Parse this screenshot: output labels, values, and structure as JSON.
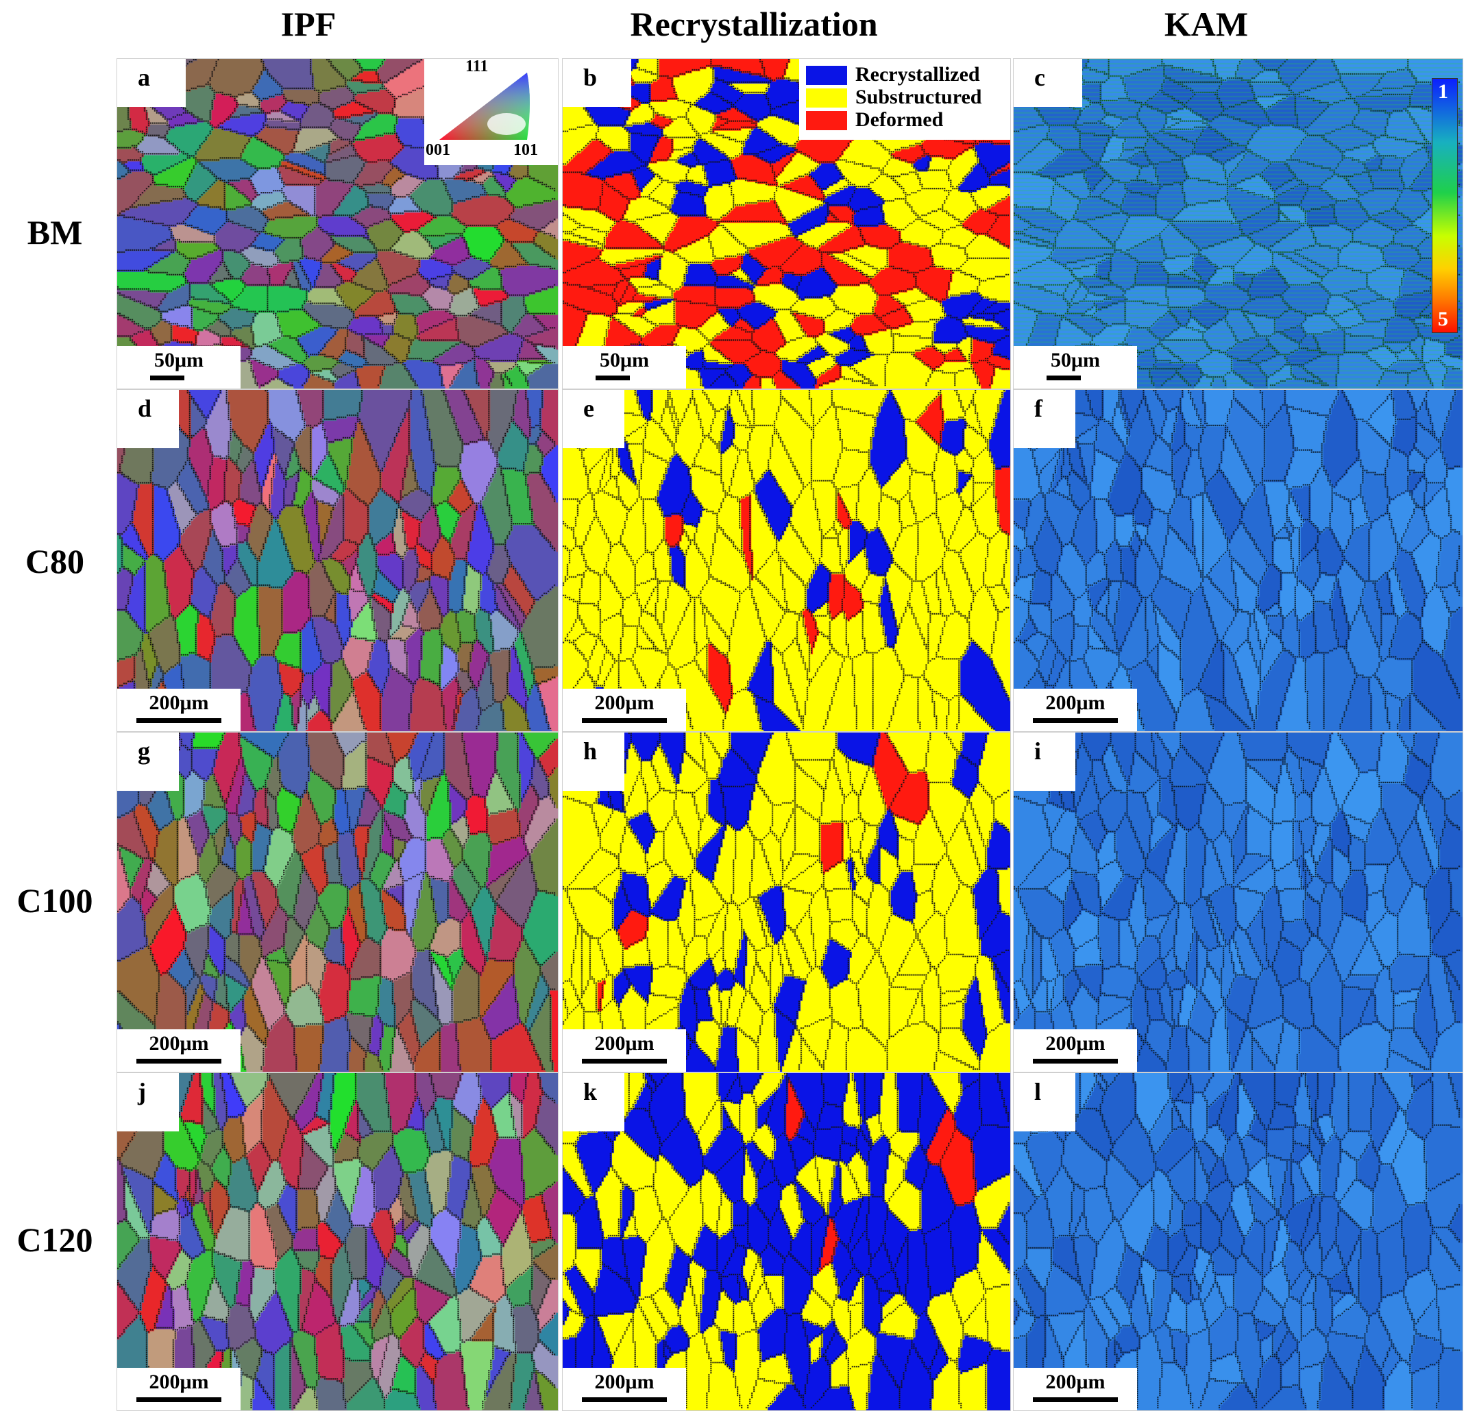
{
  "columns": {
    "ipf": "IPF",
    "recrystallization": "Recrystallization",
    "kam": "KAM"
  },
  "rows": [
    "BM",
    "C80",
    "C100",
    "C120"
  ],
  "panels": [
    {
      "letter": "a",
      "type": "ipf",
      "scale": "50μm"
    },
    {
      "letter": "b",
      "type": "rx",
      "scale": "50μm"
    },
    {
      "letter": "c",
      "type": "kam",
      "scale": "50μm"
    },
    {
      "letter": "d",
      "type": "ipf",
      "scale": "200μm"
    },
    {
      "letter": "e",
      "type": "rx",
      "scale": "200μm"
    },
    {
      "letter": "f",
      "type": "kam",
      "scale": "200μm"
    },
    {
      "letter": "g",
      "type": "ipf",
      "scale": "200μm"
    },
    {
      "letter": "h",
      "type": "rx",
      "scale": "200μm"
    },
    {
      "letter": "i",
      "type": "kam",
      "scale": "200μm"
    },
    {
      "letter": "j",
      "type": "ipf",
      "scale": "200μm"
    },
    {
      "letter": "k",
      "type": "rx",
      "scale": "200μm"
    },
    {
      "letter": "l",
      "type": "kam",
      "scale": "200μm"
    }
  ],
  "ipf_legend": {
    "top": "111",
    "left": "001",
    "right": "101"
  },
  "rx_legend": [
    {
      "label": "Recrystallized",
      "color": "#0a14e6"
    },
    {
      "label": "Substructured",
      "color": "#ffff00"
    },
    {
      "label": "Deformed",
      "color": "#ff1a10"
    }
  ],
  "kam_scale": {
    "min": "1",
    "max": "5"
  },
  "rx_fractions": [
    {
      "recrystallized": 0.25,
      "substructured": 0.45,
      "deformed": 0.3
    },
    {
      "recrystallized": 0.12,
      "substructured": 0.83,
      "deformed": 0.05
    },
    {
      "recrystallized": 0.25,
      "substructured": 0.72,
      "deformed": 0.03
    },
    {
      "recrystallized": 0.5,
      "substructured": 0.49,
      "deformed": 0.01
    }
  ]
}
